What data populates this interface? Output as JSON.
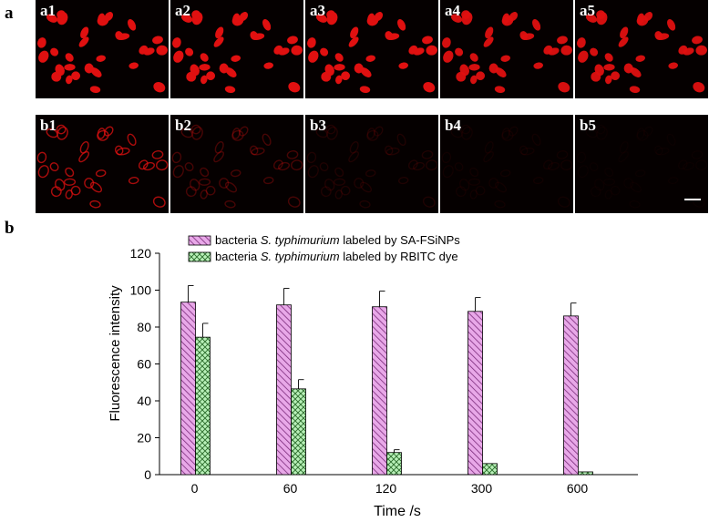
{
  "figure": {
    "panel_a_label": "a",
    "panel_b_label": "b"
  },
  "micrographs": {
    "row_a": [
      "a1",
      "a2",
      "a3",
      "a4",
      "a5"
    ],
    "row_b": [
      "b1",
      "b2",
      "b3",
      "b4",
      "b5"
    ],
    "row_a_brightness": [
      1.0,
      1.0,
      1.0,
      0.95,
      0.95
    ],
    "row_b_brightness": [
      0.75,
      0.3,
      0.12,
      0.06,
      0.03
    ],
    "cell_color": "#e01010",
    "background_color": "#050000"
  },
  "chart_data": {
    "type": "bar",
    "title": "",
    "xlabel": "Time /s",
    "ylabel": "Fluorescence intensity",
    "categories": [
      "0",
      "60",
      "120",
      "300",
      "600"
    ],
    "ylim": [
      0,
      120
    ],
    "yticks": [
      "0",
      "20",
      "40",
      "60",
      "80",
      "100",
      "120"
    ],
    "legend_position": "top",
    "series": [
      {
        "name": "bacteria S. typhimurium labeled by SA-FSiNPs",
        "legend_parts": [
          "bacteria ",
          "S. typhimurium",
          " labeled by SA-FSiNPs"
        ],
        "values": [
          93.5,
          92,
          91,
          88.5,
          86
        ],
        "errors": [
          9,
          9,
          8.5,
          7.5,
          7
        ],
        "color": "#e8a8e8",
        "hatch": "diagonal"
      },
      {
        "name": "bacteria S. typhimurium labeled by RBITC dye",
        "legend_parts": [
          "bacteria ",
          "S. typhimurium",
          " labeled by  RBITC dye"
        ],
        "values": [
          74.5,
          46.5,
          12,
          6,
          1.5
        ],
        "errors": [
          7.5,
          5,
          1.5,
          0,
          0
        ],
        "color": "#b8f0b8",
        "hatch": "crosshatch"
      }
    ]
  }
}
